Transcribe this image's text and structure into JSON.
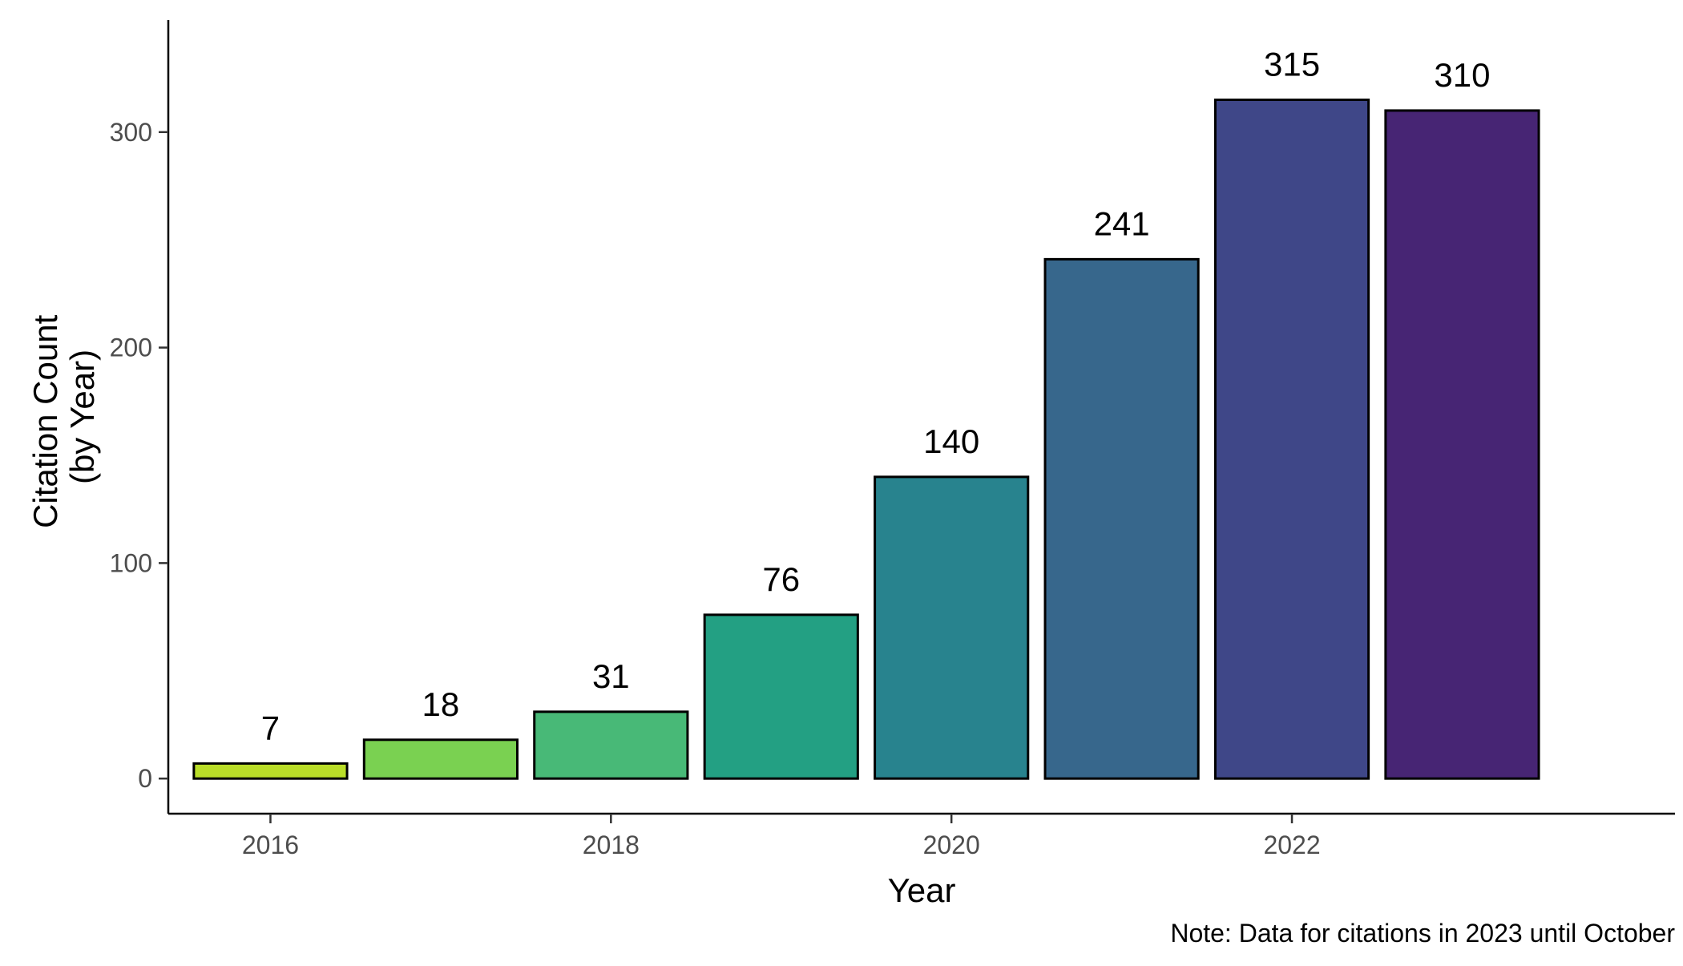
{
  "chart_data": {
    "type": "bar",
    "categories": [
      "2016",
      "2017",
      "2018",
      "2019",
      "2020",
      "2021",
      "2022",
      "2023"
    ],
    "values": [
      7,
      18,
      31,
      76,
      140,
      241,
      315,
      310
    ],
    "data_labels": [
      "7",
      "18",
      "31",
      "76",
      "140",
      "241",
      "315",
      "310"
    ],
    "title": "",
    "xlabel": "Year",
    "ylabel_lines": [
      "Citation Count",
      "(by Year)"
    ],
    "x_range": [
      2015.4,
      2024.25
    ],
    "x_ticks": [
      2016,
      2018,
      2020,
      2022
    ],
    "x_tick_labels": [
      "2016",
      "2018",
      "2020",
      "2022"
    ],
    "ylim": [
      -16.3,
      352
    ],
    "y_ticks": [
      0,
      100,
      200,
      300
    ],
    "y_tick_labels": [
      "0",
      "100",
      "200",
      "300"
    ],
    "grid": false,
    "legend": "none",
    "note": "Note: Data for citations in 2023 until October",
    "bar_outline_color": "#000000",
    "bar_colors": [
      "#BADE28",
      "#7AD151",
      "#48B977",
      "#23A083",
      "#28838E",
      "#37678C",
      "#3F4788",
      "#472574"
    ]
  }
}
